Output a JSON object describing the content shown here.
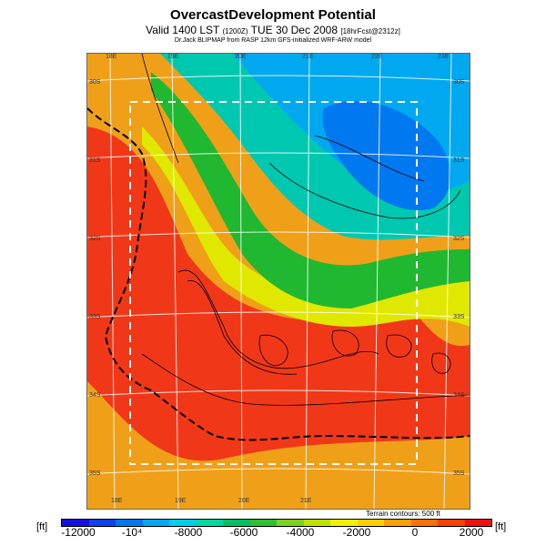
{
  "title": {
    "main": "OvercastDevelopment Potential",
    "valid_main": "Valid 1400 LST",
    "valid_code": "(1200Z)",
    "valid_date": "TUE 30 Dec 2008",
    "valid_fcst": "[18hrFcst@2312z]",
    "subtitle": "Dr.Jack BLIPMAP from RASP 12km GFS-initialized WRF-ARW model"
  },
  "axis_labels": {
    "top": [
      "18E",
      "19E",
      "20E",
      "21E",
      "22E",
      "23E"
    ],
    "bottom": [
      "18E",
      "19E",
      "20E",
      "21E"
    ],
    "left": [
      "30S",
      "31S",
      "32S",
      "33S",
      "34S",
      "35S"
    ],
    "right": [
      "30S",
      "31S",
      "32S",
      "33S",
      "34S",
      "35S"
    ]
  },
  "colorbar": {
    "unit_left": "[ft]",
    "unit_right": "[ft]",
    "ticks": [
      "-12000",
      "-10⁴",
      "-8000",
      "-6000",
      "-4000",
      "-2000",
      "0",
      "2000"
    ],
    "colors": [
      "#1010e0",
      "#1040f0",
      "#0078f0",
      "#00a8f0",
      "#00d0e8",
      "#00d8a0",
      "#00c060",
      "#30c030",
      "#80d020",
      "#c0e000",
      "#f0f000",
      "#ffd000",
      "#ffa000",
      "#ff7000",
      "#ff4000",
      "#f01010"
    ]
  },
  "terrain_note": "Terrain contours: 500 ft"
}
